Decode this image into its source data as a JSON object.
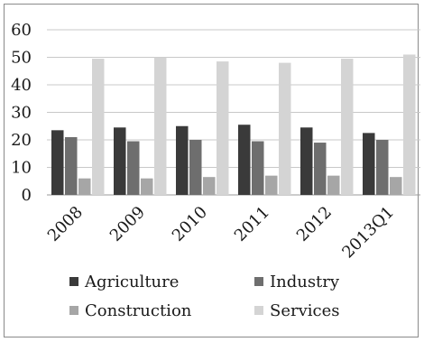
{
  "chart_data": {
    "type": "bar",
    "categories": [
      "2008",
      "2009",
      "2010",
      "2011",
      "2012",
      "2013Q1"
    ],
    "series": [
      {
        "name": "Agriculture",
        "color": "#3a3a3a",
        "values": [
          23.5,
          24.5,
          25,
          25.5,
          24.5,
          22.5
        ]
      },
      {
        "name": "Industry",
        "color": "#6e6e6e",
        "values": [
          21,
          19.5,
          20,
          19.5,
          19,
          20
        ]
      },
      {
        "name": "Construction",
        "color": "#a6a6a6",
        "values": [
          6,
          6,
          6.5,
          7,
          7,
          6.5
        ]
      },
      {
        "name": "Services",
        "color": "#d4d4d4",
        "values": [
          49.5,
          50,
          48.5,
          48,
          49.5,
          51
        ]
      }
    ],
    "yticks": [
      "0",
      "10",
      "20",
      "30",
      "40",
      "50",
      "60"
    ],
    "ylim": [
      0,
      60
    ],
    "grid": true,
    "legend_position": "bottom",
    "title": "",
    "xlabel": "",
    "ylabel": ""
  }
}
